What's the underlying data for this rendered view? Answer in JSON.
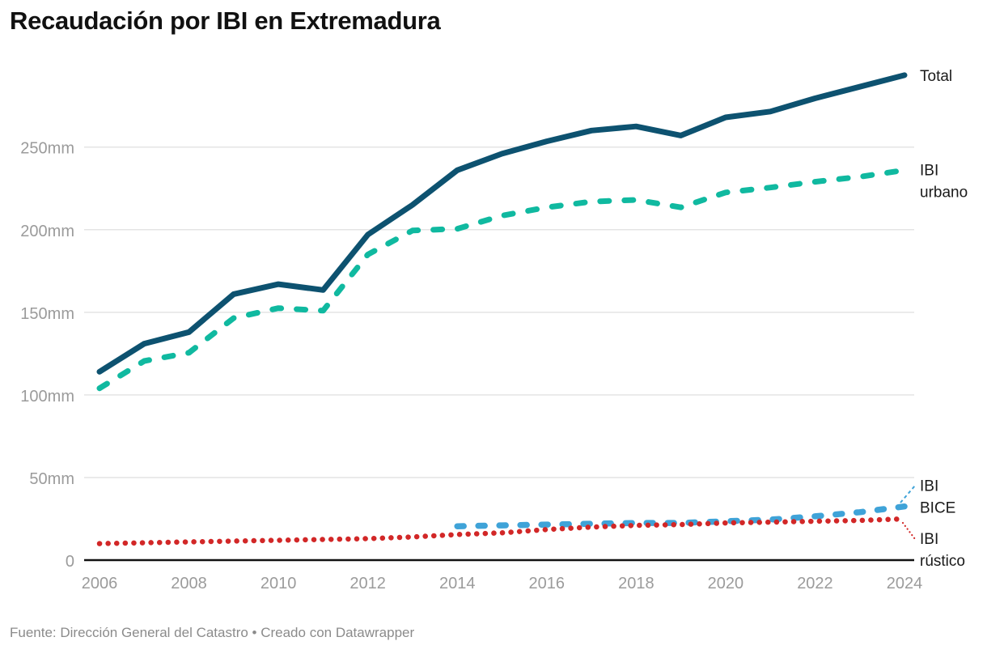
{
  "header": {
    "title": "Recaudación por IBI en Extremadura"
  },
  "footer": {
    "text": "Fuente: Dirección General del Catastro • Creado con Datawrapper"
  },
  "chart_data": {
    "type": "line",
    "title": "Recaudación por IBI en Extremadura",
    "unit": "mm",
    "grid": "horizontal",
    "legend_position": "right-of-line-ends",
    "ylim": [
      0,
      300
    ],
    "x": [
      2006,
      2007,
      2008,
      2009,
      2010,
      2011,
      2012,
      2013,
      2014,
      2015,
      2016,
      2017,
      2018,
      2019,
      2020,
      2021,
      2022,
      2023,
      2024
    ],
    "x_tick_labels": [
      "2006",
      "2008",
      "2010",
      "2012",
      "2014",
      "2016",
      "2018",
      "2020",
      "2022",
      "2024"
    ],
    "y_ticks": [
      {
        "value": 0,
        "label": "0"
      },
      {
        "value": 50,
        "label": "50mm"
      },
      {
        "value": 100,
        "label": "100mm"
      },
      {
        "value": 150,
        "label": "150mm"
      },
      {
        "value": 200,
        "label": "200mm"
      },
      {
        "value": 250,
        "label": "250mm"
      }
    ],
    "series": [
      {
        "id": "total",
        "name": "Total",
        "label_lines": [
          "Total"
        ],
        "color": "#0d5270",
        "line_style": "solid",
        "values": [
          114,
          131,
          138,
          161,
          167,
          163.5,
          197,
          215,
          236,
          246,
          253.5,
          260,
          262.5,
          257,
          268,
          271.5,
          279.5,
          286.5,
          293.5
        ]
      },
      {
        "id": "urbano",
        "name": "IBI urbano",
        "label_lines": [
          "IBI",
          "urbano"
        ],
        "color": "#10b9a0",
        "line_style": "dashed",
        "values": [
          104,
          120.5,
          125.5,
          146.5,
          152.5,
          151,
          185,
          199.5,
          200.5,
          208.5,
          213.5,
          217,
          218,
          213.5,
          222.5,
          225.5,
          229,
          232,
          236
        ]
      },
      {
        "id": "bice",
        "name": "IBI BICE",
        "label_lines": [
          "IBI",
          "BICE"
        ],
        "color": "#3fa3d8",
        "line_style": "dashed",
        "values": [
          null,
          null,
          null,
          null,
          null,
          null,
          null,
          null,
          20.5,
          21,
          21.5,
          22,
          22.5,
          22.5,
          23.5,
          24.5,
          26.5,
          29,
          32.5
        ]
      },
      {
        "id": "rustico",
        "name": "IBI rústico",
        "label_lines": [
          "IBI",
          "rústico"
        ],
        "color": "#d22727",
        "line_style": "dotted",
        "values": [
          10,
          10.5,
          11,
          11.5,
          12,
          12.5,
          13,
          14,
          15.5,
          16.5,
          18.5,
          20,
          21,
          21.5,
          22.5,
          23,
          23.5,
          24,
          25
        ]
      }
    ],
    "axis_colors": {
      "tick_label": "#9b9b9b",
      "gridline": "#e4e4e4",
      "baseline": "#111111"
    }
  }
}
